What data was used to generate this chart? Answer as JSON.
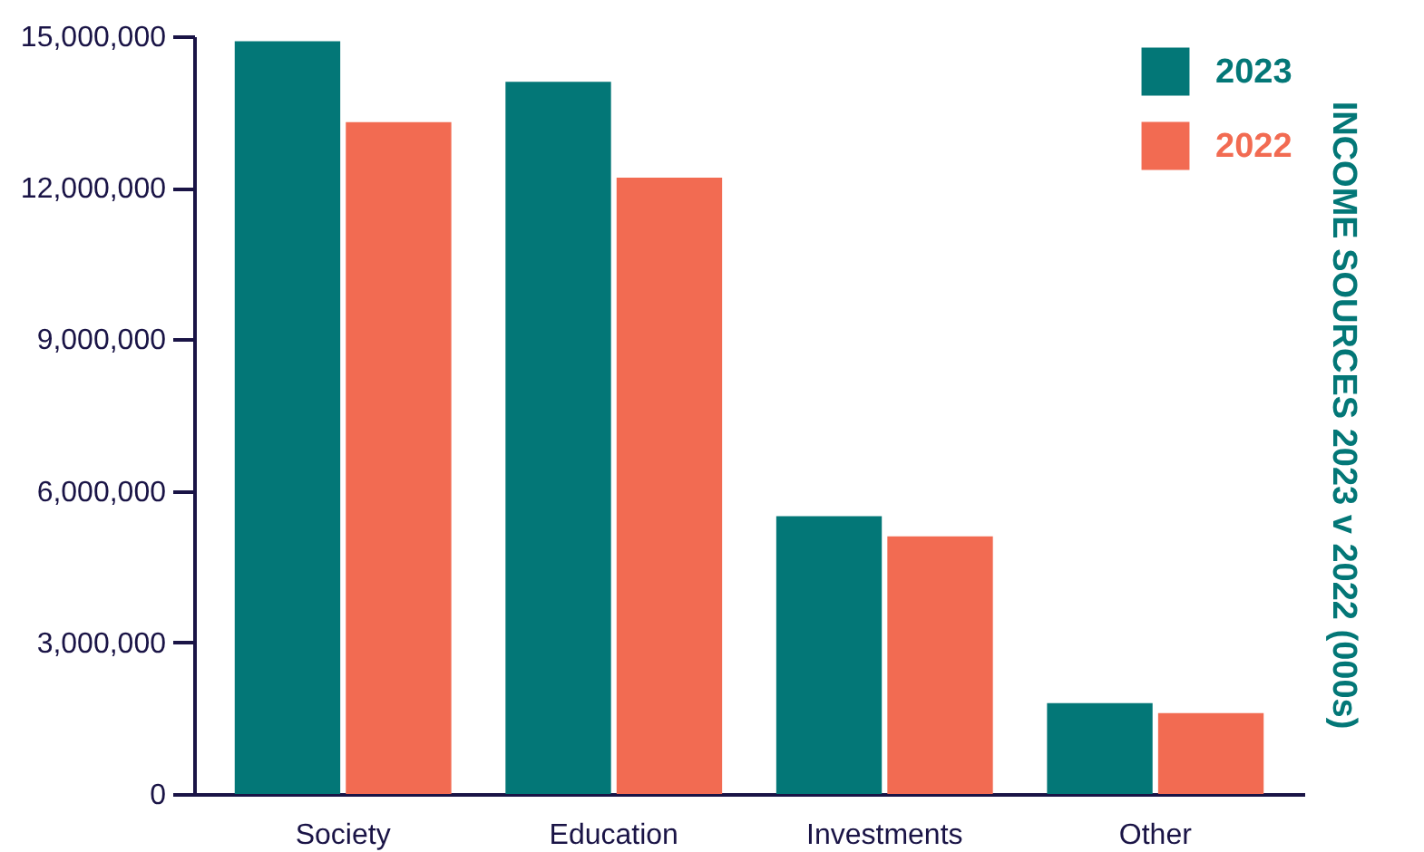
{
  "chart_data": {
    "type": "bar",
    "ylabel": "INCOME SOURCES 2023 v 2022 (000s)",
    "categories": [
      "Society",
      "Education",
      "Investments",
      "Other"
    ],
    "series": [
      {
        "name": "2023",
        "color": "#037777",
        "values": [
          14900000,
          14100000,
          5500000,
          1800000
        ]
      },
      {
        "name": "2022",
        "color": "#f26b52",
        "values": [
          13300000,
          12200000,
          5100000,
          1600000
        ]
      }
    ],
    "ylim": [
      0,
      15000000
    ],
    "yticks": [
      0,
      {
        "value": 3000000,
        "label": "3,000,000"
      },
      {
        "value": 6000000,
        "label": "6,000,000"
      },
      {
        "value": 9000000,
        "label": "9,000,000"
      },
      {
        "value": 12000000,
        "label": "12,000,000"
      },
      {
        "value": 15000000,
        "label": "15,000,000"
      }
    ],
    "grid": false,
    "legend": "top right"
  }
}
